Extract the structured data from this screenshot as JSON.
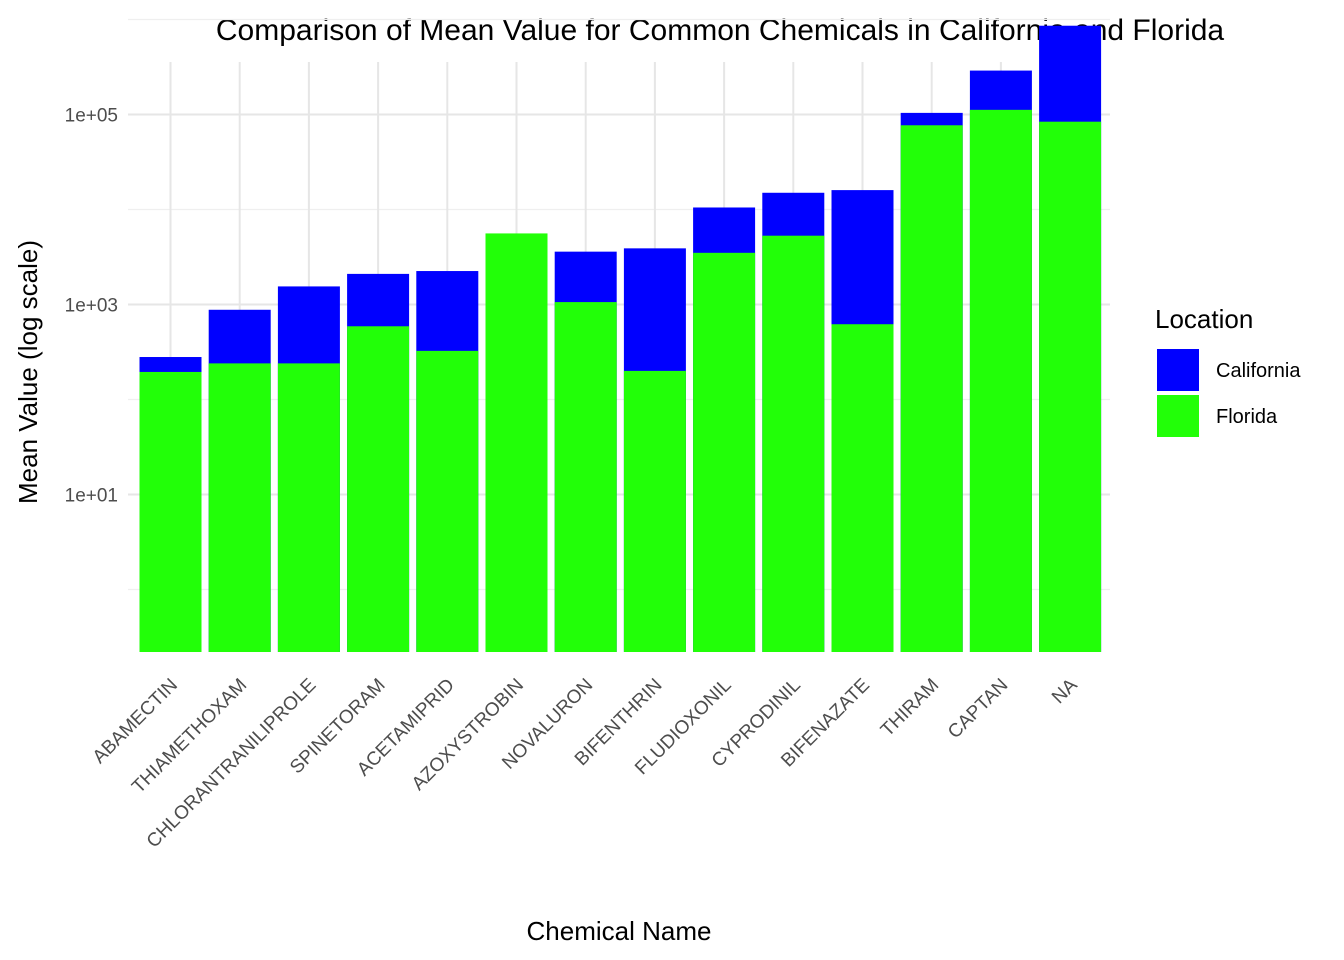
{
  "chart_data": {
    "type": "bar",
    "stacked": false,
    "overlay": true,
    "title": "Comparison of Mean Value for Common Chemicals in California and Florida",
    "xlabel": "Chemical Name",
    "ylabel": "Mean Value (log scale)",
    "y_scale": "log10",
    "ylim": [
      1,
      1000000
    ],
    "yticks": [
      10,
      1000,
      100000
    ],
    "ytick_labels": [
      "1e+01",
      "1e+03",
      "1e+05"
    ],
    "grid": true,
    "legend": {
      "title": "Location",
      "placement": "right"
    },
    "categories": [
      "ABAMECTIN",
      "THIAMETHOXAM",
      "CHLORANTRANILIPROLE",
      "SPINETORAM",
      "ACETAMIPRID",
      "AZOXYSTROBIN",
      "NOVALURON",
      "BIFENTHRIN",
      "FLUDIOXONIL",
      "CYPRODINIL",
      "BIFENAZATE",
      "THIRAM",
      "CAPTAN",
      "NA"
    ],
    "series": [
      {
        "name": "California",
        "color": "#0000ff",
        "values": [
          280,
          880,
          1550,
          2100,
          2250,
          null,
          3600,
          3900,
          10500,
          15000,
          16000,
          104000,
          290000,
          860000
        ]
      },
      {
        "name": "Florida",
        "color": "#22ff08",
        "values": [
          195,
          240,
          240,
          590,
          325,
          5600,
          1060,
          200,
          3500,
          5300,
          620,
          77000,
          112000,
          84000
        ]
      }
    ]
  }
}
